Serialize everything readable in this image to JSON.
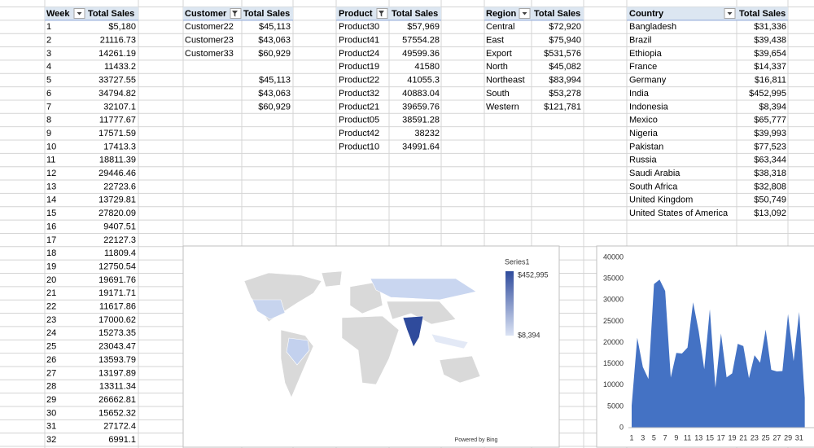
{
  "week_table": {
    "headers": [
      "Week",
      "Total Sales"
    ],
    "rows": [
      [
        "1",
        "$5,180"
      ],
      [
        "2",
        "21116.73"
      ],
      [
        "3",
        "14261.19"
      ],
      [
        "4",
        "11433.2"
      ],
      [
        "5",
        "33727.55"
      ],
      [
        "6",
        "34794.82"
      ],
      [
        "7",
        "32107.1"
      ],
      [
        "8",
        "11777.67"
      ],
      [
        "9",
        "17571.59"
      ],
      [
        "10",
        "17413.3"
      ],
      [
        "11",
        "18811.39"
      ],
      [
        "12",
        "29446.46"
      ],
      [
        "13",
        "22723.6"
      ],
      [
        "14",
        "13729.81"
      ],
      [
        "15",
        "27820.09"
      ],
      [
        "16",
        "9407.51"
      ],
      [
        "17",
        "22127.3"
      ],
      [
        "18",
        "11809.4"
      ],
      [
        "19",
        "12750.54"
      ],
      [
        "20",
        "19691.76"
      ],
      [
        "21",
        "19171.71"
      ],
      [
        "22",
        "11617.86"
      ],
      [
        "23",
        "17000.62"
      ],
      [
        "24",
        "15273.35"
      ],
      [
        "25",
        "23043.47"
      ],
      [
        "26",
        "13593.79"
      ],
      [
        "27",
        "13197.89"
      ],
      [
        "28",
        "13311.34"
      ],
      [
        "29",
        "26662.81"
      ],
      [
        "30",
        "15652.32"
      ],
      [
        "31",
        "27172.4"
      ],
      [
        "32",
        "6991.1"
      ]
    ]
  },
  "customer_table": {
    "headers": [
      "Customer",
      "Total Sales"
    ],
    "rows": [
      [
        "Customer22",
        "$45,113"
      ],
      [
        "Customer23",
        "$43,063"
      ],
      [
        "Customer33",
        "$60,929"
      ]
    ],
    "extra_values": [
      "$45,113",
      "$43,063",
      "$60,929"
    ]
  },
  "product_table": {
    "headers": [
      "Product",
      "Total Sales"
    ],
    "rows": [
      [
        "Product30",
        "$57,969"
      ],
      [
        "Product41",
        "57554.28"
      ],
      [
        "Product24",
        "49599.36"
      ],
      [
        "Product19",
        "41580"
      ],
      [
        "Product22",
        "41055.3"
      ],
      [
        "Product32",
        "40883.04"
      ],
      [
        "Product21",
        "39659.76"
      ],
      [
        "Product05",
        "38591.28"
      ],
      [
        "Product42",
        "38232"
      ],
      [
        "Product10",
        "34991.64"
      ]
    ]
  },
  "region_table": {
    "headers": [
      "Region",
      "Total Sales"
    ],
    "rows": [
      [
        "Central",
        "$72,920"
      ],
      [
        "East",
        "$75,940"
      ],
      [
        "Export",
        "$531,576"
      ],
      [
        "North",
        "$45,082"
      ],
      [
        "Northeast",
        "$83,994"
      ],
      [
        "South",
        "$53,278"
      ],
      [
        "Western",
        "$121,781"
      ]
    ]
  },
  "country_table": {
    "headers": [
      "Country",
      "Total Sales"
    ],
    "rows": [
      [
        "Bangladesh",
        "$31,336"
      ],
      [
        "Brazil",
        "$39,438"
      ],
      [
        "Ethiopia",
        "$39,654"
      ],
      [
        "France",
        "$14,337"
      ],
      [
        "Germany",
        "$16,811"
      ],
      [
        "India",
        "$452,995"
      ],
      [
        "Indonesia",
        "$8,394"
      ],
      [
        "Mexico",
        "$65,777"
      ],
      [
        "Nigeria",
        "$39,993"
      ],
      [
        "Pakistan",
        "$77,523"
      ],
      [
        "Russia",
        "$63,344"
      ],
      [
        "Saudi Arabia",
        "$38,318"
      ],
      [
        "South Africa",
        "$32,808"
      ],
      [
        "United Kingdom",
        "$50,749"
      ],
      [
        "United States of America",
        "$13,092"
      ]
    ]
  },
  "map": {
    "legend_title": "Series1",
    "max_label": "$452,995",
    "min_label": "$8,394",
    "credit": "Powered by Bing"
  },
  "chart_data": {
    "type": "area",
    "categories": [
      1,
      null,
      3,
      null,
      5,
      null,
      7,
      null,
      9,
      null,
      11,
      null,
      13,
      null,
      15,
      null,
      17,
      null,
      19,
      null,
      21,
      null,
      23,
      null,
      25,
      null,
      27,
      null,
      29,
      null,
      31,
      null
    ],
    "values": [
      5180,
      21116.73,
      14261.19,
      11433.2,
      33727.55,
      34794.82,
      32107.1,
      11777.67,
      17571.59,
      17413.3,
      18811.39,
      29446.46,
      22723.6,
      13729.81,
      27820.09,
      9407.51,
      22127.3,
      11809.4,
      12750.54,
      19691.76,
      19171.71,
      11617.86,
      17000.62,
      15273.35,
      23043.47,
      13593.79,
      13197.89,
      13311.34,
      26662.81,
      15652.32,
      27172.4,
      6991.1
    ],
    "color": "#4472c4",
    "ylim": [
      0,
      40000
    ],
    "yticks": [
      0,
      5000,
      10000,
      15000,
      20000,
      25000,
      30000,
      35000,
      40000
    ]
  }
}
